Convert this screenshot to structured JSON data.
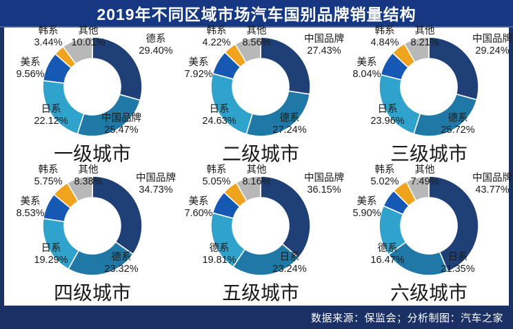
{
  "header": {
    "title": "2019年不同区域市场汽车国别品牌销量结构"
  },
  "footer": {
    "text": "数据来源：保监会；分析制图：汽车之家"
  },
  "palette": [
    "#1F4076",
    "#2078A6",
    "#2FA3CC",
    "#1659B5",
    "#F0A31C",
    "#B8B8B8"
  ],
  "chart_data": [
    {
      "type": "pie",
      "donut": true,
      "title": "一级城市",
      "unit": "%",
      "legend_position": "none",
      "labels_outside": true,
      "categories": [
        "德系",
        "中国品牌",
        "日系",
        "美系",
        "韩系",
        "其他"
      ],
      "values": [
        29.4,
        25.47,
        22.12,
        9.56,
        3.44,
        10.01
      ]
    },
    {
      "type": "pie",
      "donut": true,
      "title": "二级城市",
      "unit": "%",
      "legend_position": "none",
      "labels_outside": true,
      "categories": [
        "中国品牌",
        "德系",
        "日系",
        "美系",
        "韩系",
        "其他"
      ],
      "values": [
        27.43,
        27.24,
        24.63,
        7.92,
        4.22,
        8.56
      ]
    },
    {
      "type": "pie",
      "donut": true,
      "title": "三级城市",
      "unit": "%",
      "legend_position": "none",
      "labels_outside": true,
      "categories": [
        "中国品牌",
        "德系",
        "日系",
        "美系",
        "韩系",
        "其他"
      ],
      "values": [
        29.24,
        25.72,
        23.96,
        8.04,
        4.84,
        8.21
      ]
    },
    {
      "type": "pie",
      "donut": true,
      "title": "四级城市",
      "unit": "%",
      "legend_position": "none",
      "labels_outside": true,
      "categories": [
        "中国品牌",
        "德系",
        "日系",
        "美系",
        "韩系",
        "其他"
      ],
      "values": [
        34.73,
        23.32,
        19.29,
        8.53,
        5.75,
        8.38
      ]
    },
    {
      "type": "pie",
      "donut": true,
      "title": "五级城市",
      "unit": "%",
      "legend_position": "none",
      "labels_outside": true,
      "categories": [
        "中国品牌",
        "日系",
        "德系",
        "美系",
        "韩系",
        "其他"
      ],
      "values": [
        36.15,
        23.24,
        19.81,
        7.6,
        5.05,
        8.16
      ]
    },
    {
      "type": "pie",
      "donut": true,
      "title": "六级城市",
      "unit": "%",
      "legend_position": "none",
      "labels_outside": true,
      "categories": [
        "中国品牌",
        "日系",
        "德系",
        "美系",
        "韩系",
        "其他"
      ],
      "values": [
        43.77,
        21.35,
        16.47,
        5.9,
        5.02,
        7.49
      ]
    }
  ]
}
